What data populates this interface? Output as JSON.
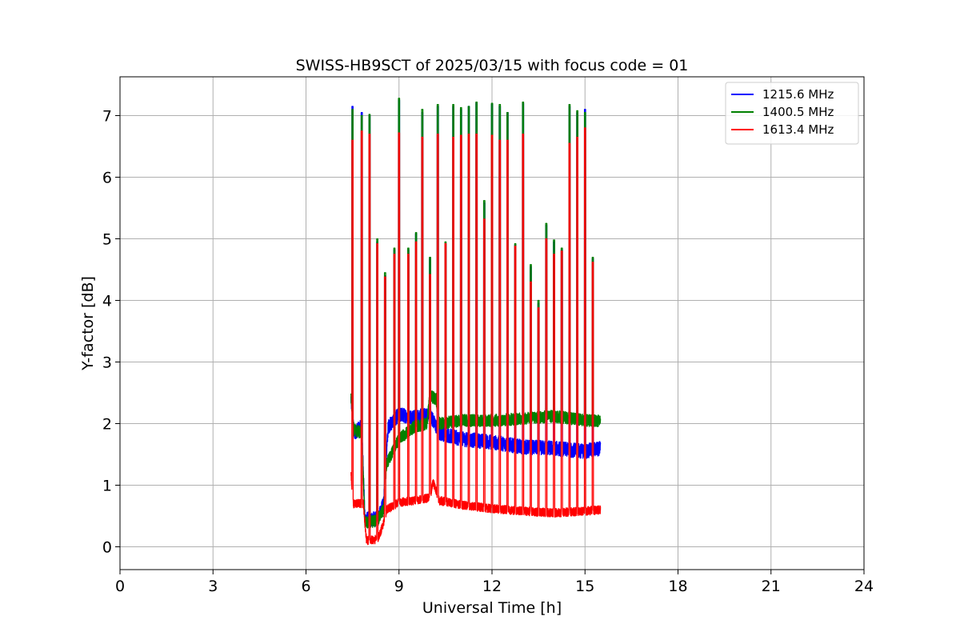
{
  "chart_data": {
    "type": "line",
    "title": "SWISS-HB9SCT of 2025/03/15 with focus code = 01",
    "xlabel": "Universal Time [h]",
    "ylabel": "Y-factor [dB]",
    "xlim": [
      0,
      24
    ],
    "ylim": [
      -0.37,
      7.63
    ],
    "xticks": [
      0,
      3,
      6,
      9,
      12,
      15,
      18,
      21,
      24
    ],
    "yticks": [
      0,
      1,
      2,
      3,
      4,
      5,
      6,
      7
    ],
    "grid": true,
    "legend_position": "top-right",
    "data_start": 7.45,
    "data_end": 15.5,
    "spike_width": 0.04,
    "series": [
      {
        "name": "1215.6 MHz",
        "color": "#0000ff",
        "baseline": [
          [
            7.45,
            2.4
          ],
          [
            7.55,
            1.85
          ],
          [
            7.8,
            1.95
          ],
          [
            7.9,
            0.45
          ],
          [
            8.3,
            0.45
          ],
          [
            8.5,
            0.7
          ],
          [
            8.65,
            1.95
          ],
          [
            9.0,
            2.15
          ],
          [
            9.5,
            2.1
          ],
          [
            10.0,
            2.15
          ],
          [
            10.3,
            1.85
          ],
          [
            11.0,
            1.75
          ],
          [
            12.0,
            1.7
          ],
          [
            13.0,
            1.62
          ],
          [
            14.0,
            1.6
          ],
          [
            15.0,
            1.55
          ],
          [
            15.5,
            1.6
          ]
        ],
        "noise": 0.12,
        "spikes": [
          [
            7.5,
            7.15
          ],
          [
            7.8,
            7.05
          ],
          [
            8.05,
            7.0
          ],
          [
            8.3,
            4.95
          ],
          [
            8.55,
            4.4
          ],
          [
            8.85,
            4.82
          ],
          [
            9.0,
            7.25
          ],
          [
            9.3,
            4.82
          ],
          [
            9.55,
            5.08
          ],
          [
            9.75,
            7.05
          ],
          [
            10.0,
            4.68
          ],
          [
            10.25,
            7.15
          ],
          [
            10.5,
            4.92
          ],
          [
            10.75,
            7.15
          ],
          [
            11.0,
            7.1
          ],
          [
            11.25,
            7.15
          ],
          [
            11.5,
            7.2
          ],
          [
            11.75,
            5.58
          ],
          [
            12.0,
            7.18
          ],
          [
            12.25,
            7.15
          ],
          [
            12.5,
            7.05
          ],
          [
            12.75,
            4.9
          ],
          [
            13.0,
            7.2
          ],
          [
            13.25,
            4.55
          ],
          [
            13.5,
            3.95
          ],
          [
            13.75,
            5.22
          ],
          [
            14.0,
            4.95
          ],
          [
            14.25,
            4.82
          ],
          [
            14.5,
            7.15
          ],
          [
            14.75,
            7.05
          ],
          [
            15.0,
            7.1
          ],
          [
            15.25,
            4.68
          ]
        ]
      },
      {
        "name": "1400.5 MHz",
        "color": "#008000",
        "baseline": [
          [
            7.45,
            2.4
          ],
          [
            7.55,
            1.9
          ],
          [
            7.8,
            1.85
          ],
          [
            7.9,
            0.4
          ],
          [
            8.3,
            0.42
          ],
          [
            8.5,
            0.6
          ],
          [
            8.6,
            1.35
          ],
          [
            9.0,
            1.75
          ],
          [
            9.5,
            1.95
          ],
          [
            9.9,
            2.0
          ],
          [
            10.0,
            2.45
          ],
          [
            10.2,
            2.4
          ],
          [
            10.3,
            2.0
          ],
          [
            11.0,
            2.05
          ],
          [
            12.0,
            2.05
          ],
          [
            13.0,
            2.08
          ],
          [
            14.0,
            2.12
          ],
          [
            15.0,
            2.05
          ],
          [
            15.5,
            2.05
          ]
        ],
        "noise": 0.1,
        "spikes": [
          [
            7.5,
            7.1
          ],
          [
            7.8,
            7.0
          ],
          [
            8.05,
            7.02
          ],
          [
            8.3,
            5.0
          ],
          [
            8.55,
            4.45
          ],
          [
            8.85,
            4.85
          ],
          [
            9.0,
            7.28
          ],
          [
            9.3,
            4.85
          ],
          [
            9.55,
            5.1
          ],
          [
            9.75,
            7.1
          ],
          [
            10.0,
            4.7
          ],
          [
            10.25,
            7.18
          ],
          [
            10.5,
            4.95
          ],
          [
            10.75,
            7.18
          ],
          [
            11.0,
            7.13
          ],
          [
            11.25,
            7.15
          ],
          [
            11.5,
            7.22
          ],
          [
            11.75,
            5.62
          ],
          [
            12.0,
            7.2
          ],
          [
            12.25,
            7.18
          ],
          [
            12.5,
            7.05
          ],
          [
            12.75,
            4.92
          ],
          [
            13.0,
            7.22
          ],
          [
            13.25,
            4.58
          ],
          [
            13.5,
            4.0
          ],
          [
            13.75,
            5.25
          ],
          [
            14.0,
            4.98
          ],
          [
            14.25,
            4.85
          ],
          [
            14.5,
            7.18
          ],
          [
            14.75,
            7.08
          ],
          [
            15.0,
            7.05
          ],
          [
            15.25,
            4.7
          ]
        ]
      },
      {
        "name": "1613.4 MHz",
        "color": "#ff0000",
        "baseline": [
          [
            7.45,
            1.25
          ],
          [
            7.5,
            0.7
          ],
          [
            7.85,
            0.7
          ],
          [
            7.95,
            0.1
          ],
          [
            8.3,
            0.12
          ],
          [
            8.45,
            0.3
          ],
          [
            8.6,
            0.6
          ],
          [
            9.0,
            0.72
          ],
          [
            9.5,
            0.75
          ],
          [
            10.0,
            0.8
          ],
          [
            10.1,
            1.05
          ],
          [
            10.3,
            0.75
          ],
          [
            11.0,
            0.68
          ],
          [
            12.0,
            0.62
          ],
          [
            13.0,
            0.58
          ],
          [
            14.0,
            0.55
          ],
          [
            15.0,
            0.58
          ],
          [
            15.5,
            0.6
          ]
        ],
        "noise": 0.07,
        "spikes": [
          [
            7.5,
            6.6
          ],
          [
            7.8,
            6.75
          ],
          [
            8.05,
            6.7
          ],
          [
            8.3,
            4.92
          ],
          [
            8.55,
            4.38
          ],
          [
            8.85,
            4.75
          ],
          [
            9.0,
            6.72
          ],
          [
            9.3,
            4.75
          ],
          [
            9.55,
            4.95
          ],
          [
            9.75,
            6.65
          ],
          [
            10.0,
            4.42
          ],
          [
            10.25,
            6.7
          ],
          [
            10.5,
            4.92
          ],
          [
            10.75,
            6.65
          ],
          [
            11.0,
            6.68
          ],
          [
            11.25,
            6.7
          ],
          [
            11.5,
            6.7
          ],
          [
            11.75,
            5.32
          ],
          [
            12.0,
            6.68
          ],
          [
            12.25,
            6.6
          ],
          [
            12.5,
            6.6
          ],
          [
            12.75,
            4.88
          ],
          [
            13.0,
            6.7
          ],
          [
            13.25,
            4.3
          ],
          [
            13.5,
            3.88
          ],
          [
            13.75,
            5.0
          ],
          [
            14.0,
            4.75
          ],
          [
            14.25,
            4.8
          ],
          [
            14.5,
            6.55
          ],
          [
            14.75,
            6.65
          ],
          [
            15.0,
            6.8
          ],
          [
            15.25,
            4.62
          ]
        ]
      }
    ]
  }
}
